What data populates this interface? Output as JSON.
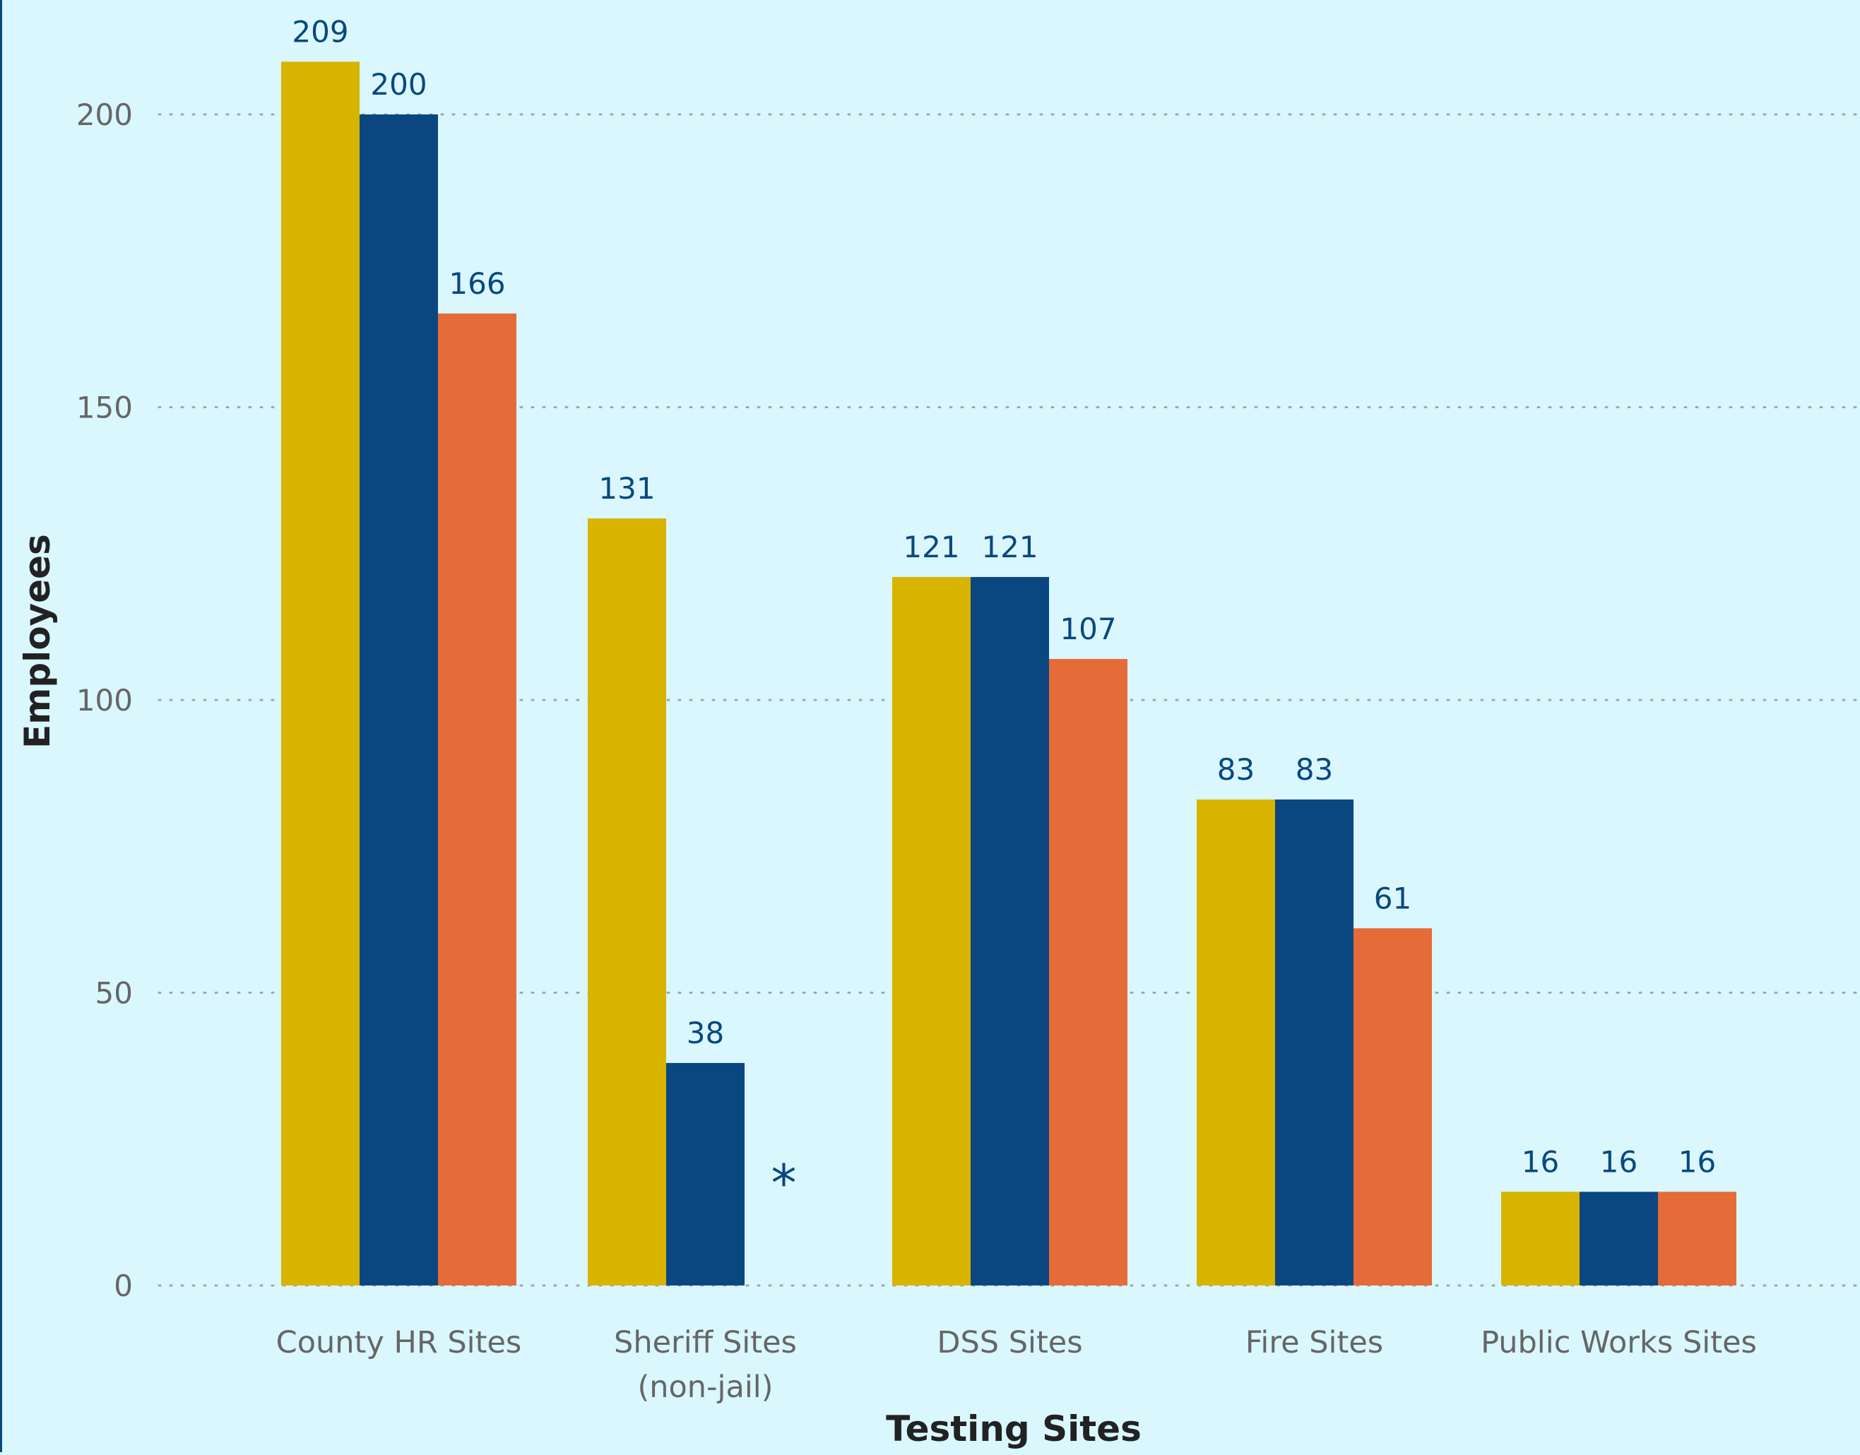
{
  "colors": {
    "background": "#d9f7fd",
    "series": [
      "#d8b300",
      "#0a4780",
      "#e56b38"
    ],
    "data_label": "#0a4780",
    "tick_label": "#666666",
    "axis_title": "#222222",
    "gridline": "#9aa7ad"
  },
  "chart_data": {
    "type": "bar",
    "title": "",
    "xlabel": "Testing Sites",
    "ylabel": "Employees",
    "categories": [
      [
        "County HR Sites"
      ],
      [
        "Sheriff Sites",
        "(non-jail)"
      ],
      [
        "DSS Sites"
      ],
      [
        "Fire Sites"
      ],
      [
        "Public Works Sites"
      ]
    ],
    "series": [
      {
        "values": [
          209,
          131,
          121,
          83,
          16
        ]
      },
      {
        "values": [
          200,
          38,
          121,
          83,
          16
        ]
      },
      {
        "values": [
          166,
          null,
          107,
          61,
          16
        ]
      }
    ],
    "missing_marker": "*",
    "yticks": [
      0,
      50,
      100,
      150,
      200
    ],
    "ylim": [
      0,
      219.5
    ],
    "grid": "horizontal-dotted",
    "legend": "none"
  }
}
